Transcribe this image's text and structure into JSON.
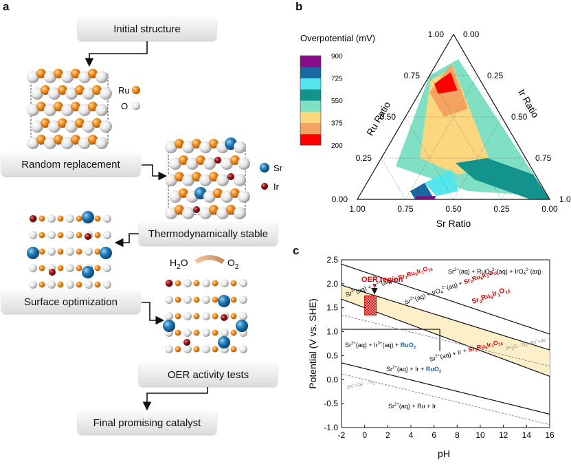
{
  "panel_labels": {
    "a": "a",
    "b": "b",
    "c": "c"
  },
  "workflow": {
    "steps": [
      "Initial structure",
      "Random replacement",
      "Thermodynamically stable",
      "Surface optimization",
      "OER activity tests",
      "Final promising catalyst"
    ],
    "legend": {
      "ru": "Ru",
      "o": "O",
      "sr": "Sr",
      "ir": "Ir"
    },
    "reaction": {
      "reactant": "H",
      "reactant_sub": "2",
      "reactant_tail": "O",
      "product": "O",
      "product_sub": "2"
    },
    "colors": {
      "ru": "#f08a1e",
      "o": "#e8e8e8",
      "sr": "#1d7ab8",
      "ir": "#9b1010"
    }
  },
  "ternary": {
    "colorbar_title": "Overpotential (mV)",
    "colorbar_ticks": [
      "900",
      "725",
      "550",
      "375",
      "200"
    ],
    "colorbar_colors": [
      "#ff0000",
      "#f4a460",
      "#fcd77f",
      "#7fe0c4",
      "#12938c",
      "#53e6ec",
      "#1968a0",
      "#8a0c8a"
    ],
    "axes": {
      "ru": "Ru Ratio",
      "ir": "Ir Ratio",
      "sr": "Sr Ratio"
    },
    "ru_ticks": [
      "0.00",
      "0.25",
      "0.50",
      "0.75",
      "1.00"
    ],
    "ir_ticks": [
      "0.00",
      "0.25",
      "0.50",
      "0.75",
      "1.00"
    ],
    "sr_ticks": [
      "1.00",
      "0.75",
      "0.50",
      "0.25",
      "0.00"
    ]
  },
  "chart_data": {
    "type": "line",
    "title": "",
    "xlabel": "pH",
    "ylabel": "Potential (V vs. SHE)",
    "xlim": [
      -2,
      16
    ],
    "ylim": [
      -1.0,
      2.5
    ],
    "xticks": [
      "-2",
      "0",
      "2",
      "4",
      "6",
      "8",
      "10",
      "12",
      "14",
      "16"
    ],
    "yticks": [
      "2.5",
      "2.0",
      "1.5",
      "1.0",
      "0.5",
      "0.0",
      "-0.5",
      "-1.0"
    ],
    "boundaries": [
      {
        "name": "upper",
        "x": [
          -2,
          16
        ],
        "y": [
          2.41,
          0.95
        ]
      },
      {
        "name": "Sr2Ru6Ir1O16-top",
        "x": [
          -2,
          16
        ],
        "y": [
          1.97,
          0.62
        ]
      },
      {
        "name": "Sr2Ru6Ir1O16-bottom",
        "x": [
          -2,
          16
        ],
        "y": [
          1.68,
          0.07
        ]
      },
      {
        "name": "Sr2+ Ir3+ RuO2",
        "x": [
          -2,
          6.5
        ],
        "y": [
          1.05,
          1.05
        ]
      },
      {
        "name": "lower",
        "x": [
          -2,
          16
        ],
        "y": [
          0.35,
          -0.72
        ]
      }
    ],
    "water_lines": [
      {
        "name": "2H2O-O2",
        "label": "2H₂O→O₂+4H⁺+4e⁻",
        "x": [
          -2,
          16
        ],
        "y": [
          1.35,
          0.28
        ]
      },
      {
        "name": "2H+-H2",
        "label": "2H⁺+2e⁻→H₂",
        "x": [
          -2,
          16
        ],
        "y": [
          0.12,
          -0.94
        ]
      }
    ],
    "shaded_region": {
      "x": [
        -2,
        16
      ],
      "y_upper": [
        1.97,
        0.62
      ],
      "y_lower": [
        1.68,
        0.07
      ],
      "color": "#fdf0c8"
    },
    "oer_region": {
      "label": "OER region",
      "x": [
        0,
        1.0
      ],
      "y": [
        1.35,
        1.75
      ]
    },
    "annotations": [
      {
        "text": "Sr²⁺(aq) + RuO₄²⁻(aq) + IrO₄²⁻(aq)",
        "x": 8.6,
        "y": 2.28,
        "color": "#111"
      },
      {
        "text": "Sr₂Ru₆Ir₁O₁₆",
        "x": 10.0,
        "y": 1.8,
        "color": "#e00000"
      },
      {
        "text": "Sr²⁺(aq) + IrO₄²⁻(aq) + Sr₂Ru₆Ir₁O₁₆",
        "x": 5.0,
        "y": 1.45,
        "color": "#111"
      },
      {
        "text": "Sr²⁺(aq) + Ir³⁺(aq) + Sr₂Ru₆Ir₁O₁₆",
        "x": 0.8,
        "y": 1.25,
        "color": "#111"
      },
      {
        "text": "Sr²⁺(aq) + Ir³⁺(aq) + RuO₂",
        "x": 1.0,
        "y": 0.8,
        "color": "#111"
      },
      {
        "text": "Sr²⁺(aq) + Ir + Sr₂Ru₆Ir₁O₁₆",
        "x": 8.5,
        "y": 0.4,
        "color": "#111"
      },
      {
        "text": "Sr²⁺(aq) + Ir + RuO₂",
        "x": 2.6,
        "y": 0.15,
        "color": "#111"
      },
      {
        "text": "Sr²⁺(aq) + Ru + Ir",
        "x": 4.5,
        "y": -0.55,
        "color": "#111"
      }
    ]
  },
  "pourbaix_text": {
    "t_top": {
      "a": "Sr",
      "b": "2+",
      "c": "(aq) + RuO",
      "d": "4",
      "e": "2−",
      "f": "(aq) + IrO",
      "g": "4",
      "h": "2−",
      "i": "(aq)"
    },
    "t_red1": {
      "a": "Sr",
      "b": "2",
      "c": "Ru",
      "d": "6",
      "e": "Ir",
      "f": "1",
      "g": "O",
      "h": "16"
    },
    "t_iro4": {
      "a": "Sr",
      "b": "2+",
      "c": "(aq) + IrO",
      "d": "4",
      "e": "2−",
      "f": "(aq) + ",
      "g": "Sr",
      "h": "2",
      "i": "Ru",
      "j": "6",
      "k": "Ir",
      "l": "1",
      "m": "O",
      "n": "16"
    },
    "t_ir3": {
      "a": "Sr",
      "b": "2+",
      "c": "(aq) + Ir",
      "d": "3+",
      "e": "(aq) + ",
      "f": "Sr",
      "g": "2",
      "h": "Ru",
      "i": "6",
      "j": "Ir",
      "k": "1",
      "l": "O",
      "m": "16"
    },
    "t_ruo2a": {
      "a": "Sr",
      "b": "2+",
      "c": "(aq) + Ir",
      "d": "3+",
      "e": "(aq) + ",
      "f": "RuO",
      "g": "2"
    },
    "t_ir": {
      "a": "Sr",
      "b": "2+",
      "c": "(aq) + Ir + ",
      "d": "Sr",
      "e": "2",
      "f": "Ru",
      "g": "6",
      "h": "Ir",
      "i": "1",
      "j": "O",
      "k": "16"
    },
    "t_ruo2b": {
      "a": "Sr",
      "b": "2+",
      "c": "(aq) + Ir + ",
      "d": "RuO",
      "e": "2"
    },
    "t_bottom": {
      "a": "Sr",
      "b": "2+",
      "c": "(aq) + Ru + Ir"
    },
    "w1": {
      "a": "2H",
      "b": "2",
      "c": "O→O",
      "d": "2",
      "e": "+4H",
      "f": "+",
      "g": "+4e",
      "h": "−"
    },
    "w2": {
      "a": "2H",
      "b": "+",
      "c": "+2e",
      "d": "−",
      "e": "→H",
      "f": "2"
    },
    "oer": "OER region"
  }
}
